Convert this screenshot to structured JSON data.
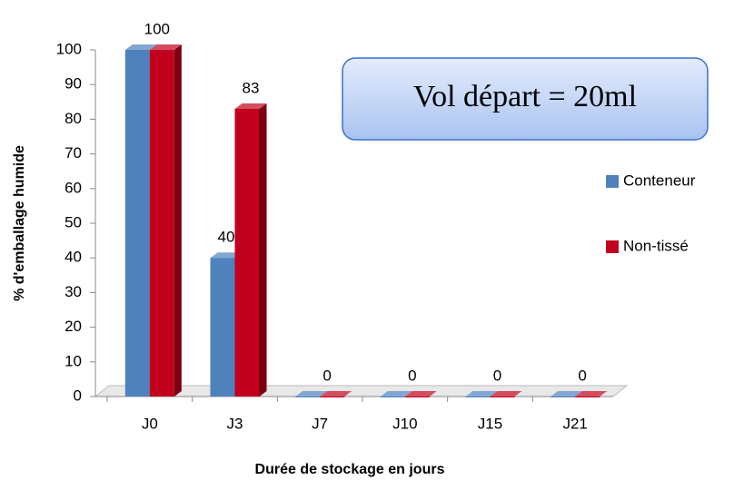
{
  "chart_data": {
    "type": "bar",
    "categories": [
      "J0",
      "J3",
      "J7",
      "J10",
      "J15",
      "J21"
    ],
    "series": [
      {
        "name": "Conteneur",
        "color": "#4f81bd",
        "values": [
          100,
          40,
          0,
          0,
          0,
          0
        ]
      },
      {
        "name": "Non-tissé",
        "color": "#c0001c",
        "values": [
          100,
          83,
          0,
          0,
          0,
          0
        ]
      }
    ],
    "ylim": [
      0,
      100
    ],
    "yticks": [
      0,
      10,
      20,
      30,
      40,
      50,
      60,
      70,
      80,
      90,
      100
    ],
    "xlabel": "Durée de stockage en jours",
    "ylabel": "% d'emballage  humide",
    "annotation": "Vol départ = 20ml",
    "legend": "right"
  }
}
